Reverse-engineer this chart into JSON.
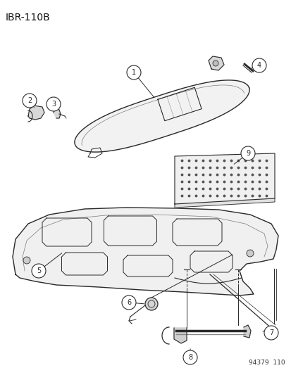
{
  "title": "IBR–110B",
  "bg_color": "#ffffff",
  "line_color": "#2a2a2a",
  "fig_number": "94379  110",
  "fig_w": 4.14,
  "fig_h": 5.33,
  "dpi": 100
}
